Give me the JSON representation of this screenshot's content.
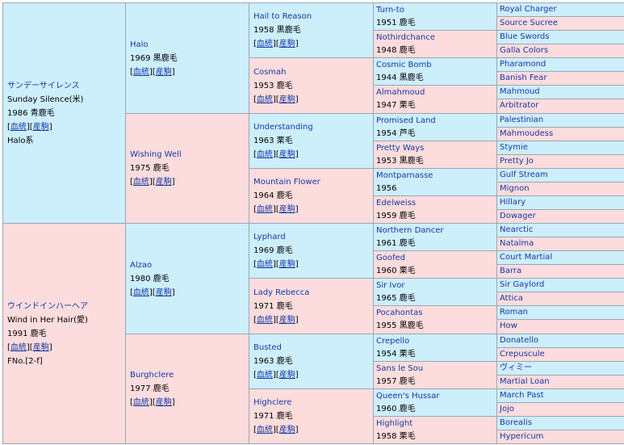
{
  "pedigree": {
    "g1": [
      {
        "name": "サンデーサイレンス",
        "sub": "Sunday Silence(米)",
        "info": "1986 青鹿毛",
        "lineage": "血統",
        "foal": "産駒",
        "extra": "Halo系",
        "sex": "m"
      },
      {
        "name": "ウインドインハーヘア",
        "sub": "Wind in Her Hair(愛)",
        "info": "1991 鹿毛",
        "lineage": "血統",
        "foal": "産駒",
        "extra": "FNo.[2-f]",
        "sex": "f"
      }
    ],
    "g2": [
      {
        "name": "Halo",
        "info": "1969 黒鹿毛",
        "lineage": "血統",
        "foal": "産駒",
        "sex": "m"
      },
      {
        "name": "Wishing Well",
        "info": "1975 鹿毛",
        "lineage": "血統",
        "foal": "産駒",
        "sex": "f"
      },
      {
        "name": "Alzao",
        "info": "1980 鹿毛",
        "lineage": "血統",
        "foal": "産駒",
        "sex": "m"
      },
      {
        "name": "Burghclere",
        "info": "1977 鹿毛",
        "lineage": "血統",
        "foal": "産駒",
        "sex": "f"
      }
    ],
    "g3": [
      {
        "name": "Hail to Reason",
        "info": "1958 黒鹿毛",
        "lineage": "血統",
        "foal": "産駒",
        "sex": "m"
      },
      {
        "name": "Cosmah",
        "info": "1953 鹿毛",
        "lineage": "血統",
        "foal": "産駒",
        "sex": "f"
      },
      {
        "name": "Understanding",
        "info": "1963 栗毛",
        "lineage": "血統",
        "foal": "産駒",
        "sex": "m"
      },
      {
        "name": "Mountain Flower",
        "info": "1964 鹿毛",
        "lineage": "血統",
        "foal": "産駒",
        "sex": "f"
      },
      {
        "name": "Lyphard",
        "info": "1969 鹿毛",
        "lineage": "血統",
        "foal": "産駒",
        "sex": "m"
      },
      {
        "name": "Lady Rebecca",
        "info": "1971 鹿毛",
        "lineage": "血統",
        "foal": "産駒",
        "sex": "f"
      },
      {
        "name": "Busted",
        "info": "1963 鹿毛",
        "lineage": "血統",
        "foal": "産駒",
        "sex": "m"
      },
      {
        "name": "Highclere",
        "info": "1971 鹿毛",
        "lineage": "血統",
        "foal": "産駒",
        "sex": "f"
      }
    ],
    "g4": [
      {
        "name": "Turn-to",
        "info": "1951 鹿毛",
        "sex": "m"
      },
      {
        "name": "Nothirdchance",
        "info": "1948 鹿毛",
        "sex": "f"
      },
      {
        "name": "Cosmic Bomb",
        "info": "1944 黒鹿毛",
        "sex": "m"
      },
      {
        "name": "Almahmoud",
        "info": "1947 栗毛",
        "sex": "f"
      },
      {
        "name": "Promised Land",
        "info": "1954 芦毛",
        "sex": "m"
      },
      {
        "name": "Pretty Ways",
        "info": "1953 黒鹿毛",
        "sex": "f"
      },
      {
        "name": "Montparnasse",
        "info": "1956",
        "sex": "m"
      },
      {
        "name": "Edelweiss",
        "info": "1959 鹿毛",
        "sex": "f"
      },
      {
        "name": "Northern Dancer",
        "info": "1961 鹿毛",
        "sex": "m"
      },
      {
        "name": "Goofed",
        "info": "1960 栗毛",
        "sex": "f"
      },
      {
        "name": "Sir Ivor",
        "info": "1965 鹿毛",
        "sex": "m"
      },
      {
        "name": "Pocahontas",
        "info": "1955 黒鹿毛",
        "sex": "f"
      },
      {
        "name": "Crepello",
        "info": "1954 栗毛",
        "sex": "m"
      },
      {
        "name": "Sans le Sou",
        "info": "1957 鹿毛",
        "sex": "f"
      },
      {
        "name": "Queen's Hussar",
        "info": "1960 鹿毛",
        "sex": "m"
      },
      {
        "name": "Highlight",
        "info": "1958 栗毛",
        "sex": "f"
      }
    ],
    "g5": [
      {
        "name": "Royal Charger",
        "sex": "m"
      },
      {
        "name": "Source Sucree",
        "sex": "f"
      },
      {
        "name": "Blue Swords",
        "sex": "m"
      },
      {
        "name": "Galla Colors",
        "sex": "f"
      },
      {
        "name": "Pharamond",
        "sex": "m"
      },
      {
        "name": "Banish Fear",
        "sex": "f"
      },
      {
        "name": "Mahmoud",
        "sex": "m"
      },
      {
        "name": "Arbitrator",
        "sex": "f"
      },
      {
        "name": "Palestinian",
        "sex": "m"
      },
      {
        "name": "Mahmoudess",
        "sex": "f"
      },
      {
        "name": "Stymie",
        "sex": "m"
      },
      {
        "name": "Pretty Jo",
        "sex": "f"
      },
      {
        "name": "Gulf Stream",
        "sex": "m"
      },
      {
        "name": "Mignon",
        "sex": "f"
      },
      {
        "name": "Hillary",
        "sex": "m"
      },
      {
        "name": "Dowager",
        "sex": "f"
      },
      {
        "name": "Nearctic",
        "sex": "m"
      },
      {
        "name": "Natalma",
        "sex": "f"
      },
      {
        "name": "Court Martial",
        "sex": "m"
      },
      {
        "name": "Barra",
        "sex": "f"
      },
      {
        "name": "Sir Gaylord",
        "sex": "m"
      },
      {
        "name": "Attica",
        "sex": "f"
      },
      {
        "name": "Roman",
        "sex": "m"
      },
      {
        "name": "How",
        "sex": "f"
      },
      {
        "name": "Donatello",
        "sex": "m"
      },
      {
        "name": "Crepuscule",
        "sex": "f"
      },
      {
        "name": "ヴィミー",
        "sex": "m"
      },
      {
        "name": "Martial Loan",
        "sex": "f"
      },
      {
        "name": "March Past",
        "sex": "m"
      },
      {
        "name": "Jojo",
        "sex": "f"
      },
      {
        "name": "Borealis",
        "sex": "m"
      },
      {
        "name": "Hypericum",
        "sex": "f"
      }
    ]
  }
}
